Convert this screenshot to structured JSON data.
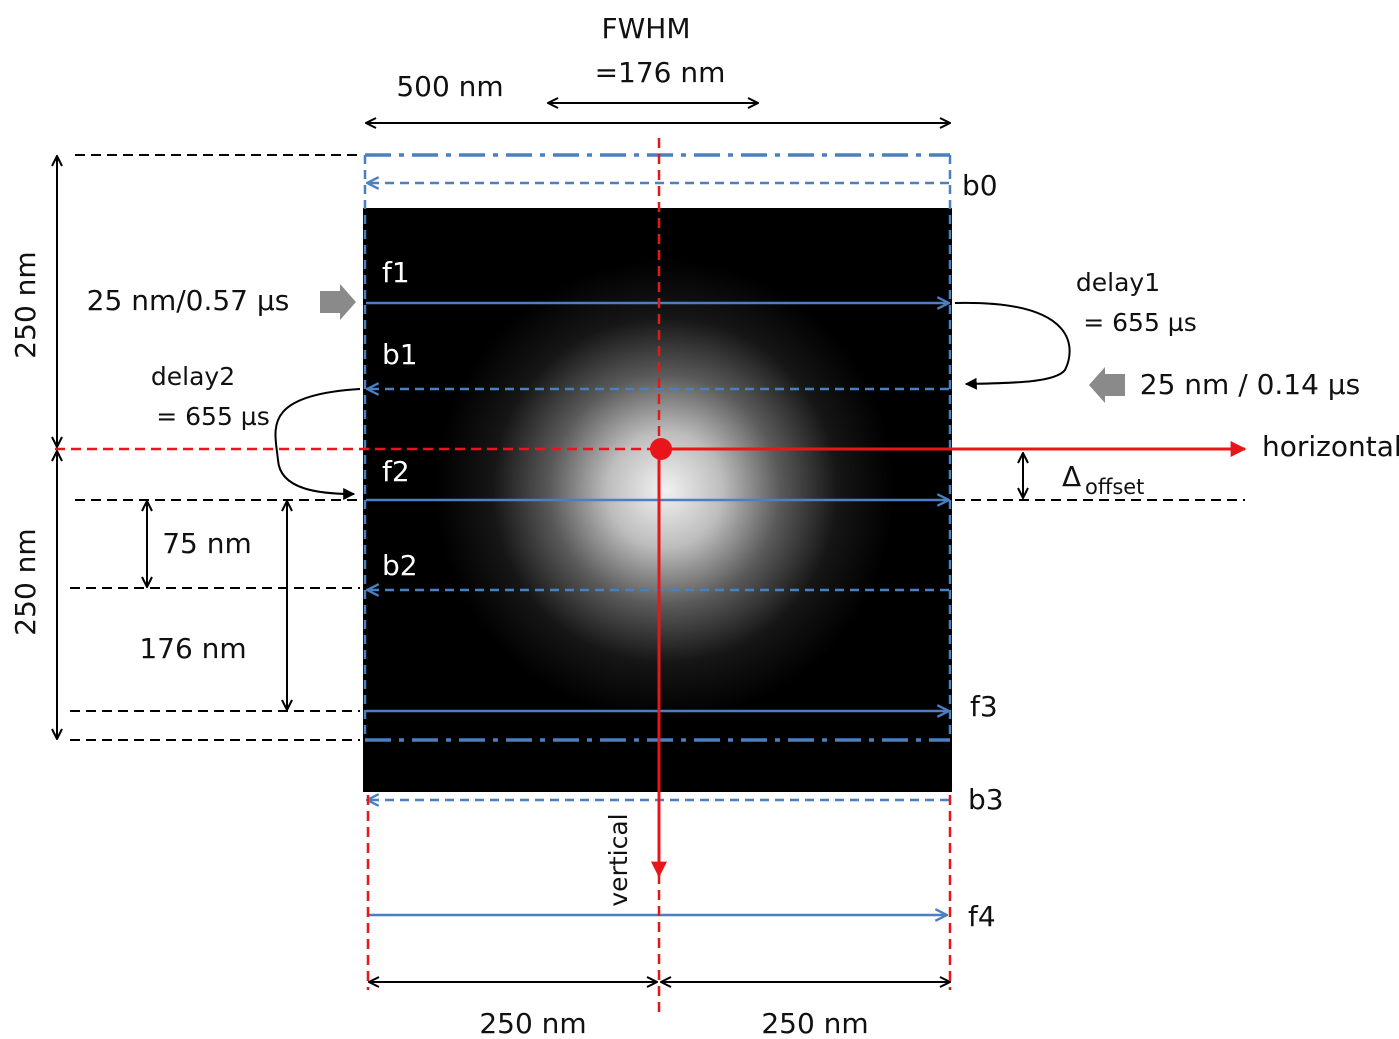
{
  "header": {
    "fwhm": "FWHM",
    "fwhm_value": "=176 nm",
    "width": "500 nm"
  },
  "scan_lines": {
    "b0": "b0",
    "f1": "f1",
    "b1": "b1",
    "f2": "f2",
    "b2": "b2",
    "f3": "f3",
    "b3": "b3",
    "f4": "f4"
  },
  "left": {
    "height_top": "250 nm",
    "height_bottom": "250 nm",
    "forward_speed": "25 nm/0.57 µs",
    "delay2": "delay2",
    "delay2_value": "= 655 µs",
    "step": "75 nm",
    "fwhm_height": "176 nm"
  },
  "right": {
    "delay1": "delay1",
    "delay1_value": "= 655 µs",
    "backward_speed": "25 nm / 0.14 µs",
    "horizontal": "horizontal",
    "offset_symbol": "Δ",
    "offset_subscript": "offset"
  },
  "bottom": {
    "vertical": "vertical",
    "half_left": "250 nm",
    "half_right": "250 nm"
  }
}
